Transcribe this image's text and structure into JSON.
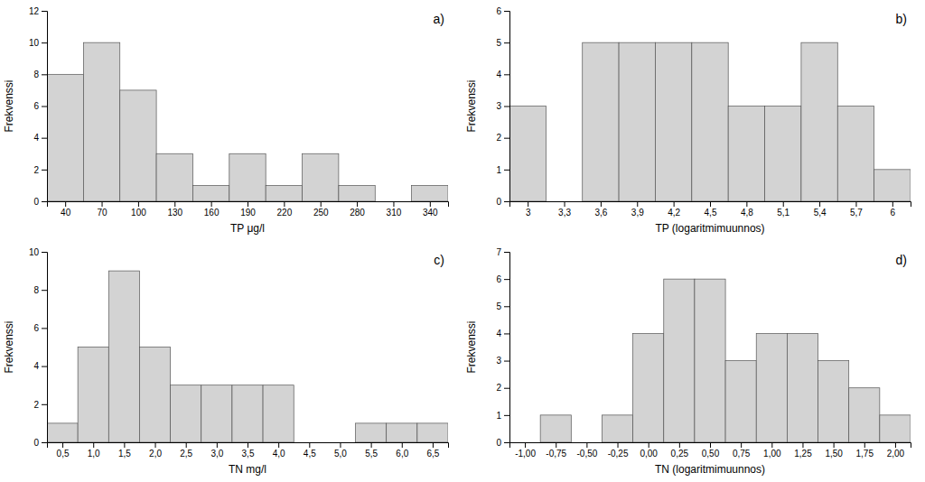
{
  "chart_data": [
    {
      "type": "histogram",
      "bins": [
        25,
        55,
        85,
        115,
        145,
        175,
        205,
        235,
        265,
        295,
        325,
        355
      ],
      "values": [
        8,
        10,
        7,
        3,
        1,
        3,
        1,
        3,
        1,
        0,
        1
      ],
      "xlabel": "TP μg/l",
      "ylabel": "Frekvenssi",
      "xlim": [
        25,
        355
      ],
      "xticks": [
        40,
        70,
        100,
        130,
        160,
        190,
        220,
        250,
        280,
        310,
        340
      ],
      "ylim": [
        0,
        12
      ],
      "yticks": [
        0,
        2,
        4,
        6,
        8,
        10,
        12
      ],
      "annotation": "a)",
      "color": "#d3d3d3",
      "grid": false
    },
    {
      "type": "histogram",
      "bins": [
        2.85,
        3.15,
        3.45,
        3.75,
        4.05,
        4.35,
        4.65,
        4.95,
        5.25,
        5.55,
        5.85,
        6.15
      ],
      "values": [
        3,
        0,
        5,
        5,
        5,
        5,
        3,
        3,
        5,
        3,
        1
      ],
      "xlabel": "TP (logaritmimuunnos)",
      "ylabel": "Frekvenssi",
      "xlim": [
        2.85,
        6.15
      ],
      "xticks": [
        3,
        {
          "value": 3.3,
          "label": "3,3"
        },
        {
          "value": 3.6,
          "label": "3,6"
        },
        {
          "value": 3.9,
          "label": "3,9"
        },
        {
          "value": 4.2,
          "label": "4,2"
        },
        {
          "value": 4.5,
          "label": "4,5"
        },
        {
          "value": 4.8,
          "label": "4,8"
        },
        {
          "value": 5.1,
          "label": "5,1"
        },
        {
          "value": 5.4,
          "label": "5,4"
        },
        {
          "value": 5.7,
          "label": "5,7"
        },
        6
      ],
      "ylim": [
        0,
        6
      ],
      "yticks": [
        0,
        1,
        2,
        3,
        4,
        5,
        6
      ],
      "annotation": "b)",
      "color": "#d3d3d3",
      "grid": false
    },
    {
      "type": "histogram",
      "bins": [
        0.25,
        0.75,
        1.25,
        1.75,
        2.25,
        2.75,
        3.25,
        3.75,
        4.25,
        4.75,
        5.25,
        5.75,
        6.25,
        6.75
      ],
      "values": [
        1,
        5,
        9,
        5,
        3,
        3,
        3,
        3,
        0,
        0,
        1,
        1,
        1
      ],
      "xlabel": "TN mg/l",
      "ylabel": "Frekvenssi",
      "xlim": [
        0.25,
        6.75
      ],
      "xticks": [
        {
          "value": 0.5,
          "label": "0,5"
        },
        {
          "value": 1.0,
          "label": "1,0"
        },
        {
          "value": 1.5,
          "label": "1,5"
        },
        {
          "value": 2.0,
          "label": "2,0"
        },
        {
          "value": 2.5,
          "label": "2,5"
        },
        {
          "value": 3.0,
          "label": "3,0"
        },
        {
          "value": 3.5,
          "label": "3,5"
        },
        {
          "value": 4.0,
          "label": "4,0"
        },
        {
          "value": 4.5,
          "label": "4,5"
        },
        {
          "value": 5.0,
          "label": "5,0"
        },
        {
          "value": 5.5,
          "label": "5,5"
        },
        {
          "value": 6.0,
          "label": "6,0"
        },
        {
          "value": 6.5,
          "label": "6,5"
        }
      ],
      "ylim": [
        0,
        10
      ],
      "yticks": [
        0,
        2,
        4,
        6,
        8,
        10
      ],
      "annotation": "c)",
      "color": "#d3d3d3",
      "grid": false
    },
    {
      "type": "histogram",
      "bins": [
        -1.125,
        -0.875,
        -0.625,
        -0.375,
        -0.125,
        0.125,
        0.375,
        0.625,
        0.875,
        1.125,
        1.375,
        1.625,
        1.875,
        2.125
      ],
      "values": [
        0,
        1,
        0,
        1,
        4,
        6,
        6,
        3,
        4,
        4,
        3,
        2,
        1
      ],
      "xlabel": "TN (logaritmimuunnos)",
      "ylabel": "Frekvenssi",
      "xlim": [
        -1.125,
        2.125
      ],
      "xticks": [
        {
          "value": -1.0,
          "label": "-1,00"
        },
        {
          "value": -0.75,
          "label": "-0,75"
        },
        {
          "value": -0.5,
          "label": "-0,50"
        },
        {
          "value": -0.25,
          "label": "-0,25"
        },
        {
          "value": 0.0,
          "label": "0,00"
        },
        {
          "value": 0.25,
          "label": "0,25"
        },
        {
          "value": 0.5,
          "label": "0,50"
        },
        {
          "value": 0.75,
          "label": "0,75"
        },
        {
          "value": 1.0,
          "label": "1,00"
        },
        {
          "value": 1.25,
          "label": "1,25"
        },
        {
          "value": 1.5,
          "label": "1,50"
        },
        {
          "value": 1.75,
          "label": "1,75"
        },
        {
          "value": 2.0,
          "label": "2,00"
        }
      ],
      "ylim": [
        0,
        7
      ],
      "yticks": [
        0,
        1,
        2,
        3,
        4,
        5,
        6,
        7
      ],
      "annotation": "d)",
      "color": "#d3d3d3",
      "grid": false
    }
  ]
}
